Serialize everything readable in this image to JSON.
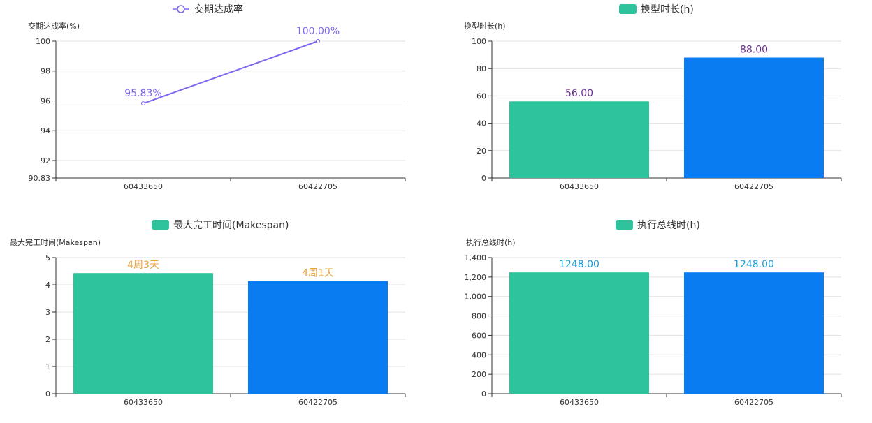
{
  "colors": {
    "green": "#2ec39c",
    "blue": "#0a7cf2",
    "line": "#7b68ee",
    "axis": "#333333",
    "grid": "#e0e0e0"
  },
  "chart_data": [
    {
      "id": "delivery",
      "type": "line",
      "legend": "交期达成率",
      "ylabel": "交期达成率(%)",
      "categories": [
        "60433650",
        "60422705"
      ],
      "values": [
        95.83,
        100.0
      ],
      "value_labels": [
        "95.83%",
        "100.00%"
      ],
      "ylim": [
        90.83,
        100
      ],
      "yticks": [
        90.83,
        92,
        94,
        96,
        98,
        100
      ],
      "ytick_labels": [
        "90.83",
        "92",
        "94",
        "96",
        "98",
        "100"
      ],
      "label_color": "#7b68ee",
      "legend_color": "#7b68ee",
      "grid": true,
      "legend_position": "top-center"
    },
    {
      "id": "changeover",
      "type": "bar",
      "legend": "换型时长(h)",
      "ylabel": "换型时长(h)",
      "categories": [
        "60433650",
        "60422705"
      ],
      "values": [
        56,
        88
      ],
      "value_labels": [
        "56.00",
        "88.00"
      ],
      "ylim": [
        0,
        100
      ],
      "yticks": [
        0,
        20,
        40,
        60,
        80,
        100
      ],
      "ytick_labels": [
        "0",
        "20",
        "40",
        "60",
        "80",
        "100"
      ],
      "bar_colors": [
        "#2ec39c",
        "#0a7cf2"
      ],
      "label_color": "#6a2e8c",
      "legend_color": "#2ec39c",
      "grid": true,
      "legend_position": "top-center"
    },
    {
      "id": "makespan",
      "type": "bar",
      "legend": "最大完工时间(Makespan)",
      "ylabel": "最大完工时间(Makespan)",
      "categories": [
        "60433650",
        "60422705"
      ],
      "values": [
        4.43,
        4.14
      ],
      "value_labels": [
        "4周3天",
        "4周1天"
      ],
      "ylim": [
        0,
        5
      ],
      "yticks": [
        0,
        1,
        2,
        3,
        4,
        5
      ],
      "ytick_labels": [
        "0",
        "1",
        "2",
        "3",
        "4",
        "5"
      ],
      "bar_colors": [
        "#2ec39c",
        "#0a7cf2"
      ],
      "label_color": "#e8a33a",
      "legend_color": "#2ec39c",
      "grid": true,
      "legend_position": "top-center"
    },
    {
      "id": "exec",
      "type": "bar",
      "legend": "执行总线时(h)",
      "ylabel": "执行总线时(h)",
      "categories": [
        "60433650",
        "60422705"
      ],
      "values": [
        1248,
        1248
      ],
      "value_labels": [
        "1248.00",
        "1248.00"
      ],
      "ylim": [
        0,
        1400
      ],
      "yticks": [
        0,
        200,
        400,
        600,
        800,
        1000,
        1200,
        1400
      ],
      "ytick_labels": [
        "0",
        "200",
        "400",
        "600",
        "800",
        "1,000",
        "1,200",
        "1,400"
      ],
      "bar_colors": [
        "#2ec39c",
        "#0a7cf2"
      ],
      "label_color": "#1b9bd8",
      "legend_color": "#2ec39c",
      "grid": true,
      "legend_position": "top-center"
    }
  ]
}
